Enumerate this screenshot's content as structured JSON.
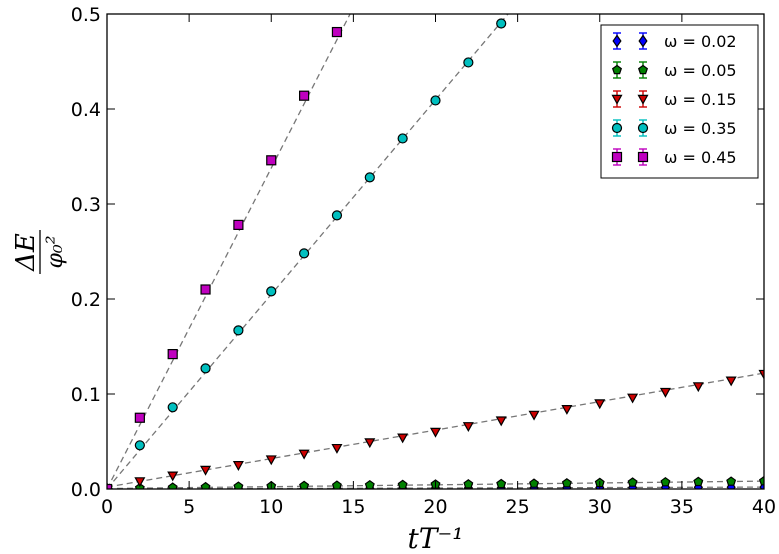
{
  "chart_data": {
    "type": "scatter",
    "xlabel": "tT⁻¹",
    "ylabel_num": "ΔE",
    "ylabel_den": "φ₀²",
    "xlim": [
      0,
      40
    ],
    "ylim": [
      0,
      0.5
    ],
    "xticks": [
      "0",
      "5",
      "10",
      "15",
      "20",
      "25",
      "30",
      "35",
      "40"
    ],
    "yticks": [
      "0.0",
      "0.1",
      "0.2",
      "0.3",
      "0.4",
      "0.5"
    ],
    "grid": false,
    "legend_position": "top-right",
    "series": [
      {
        "name": "ω = 0.02",
        "color": "#0000ff",
        "marker": "diamond",
        "x": [
          0,
          2,
          4,
          6,
          8,
          10,
          12,
          14,
          16,
          18,
          20,
          22,
          24,
          26,
          28,
          30,
          32,
          34,
          36,
          38,
          40
        ],
        "y": [
          0.0,
          0.0001,
          0.0002,
          0.0003,
          0.0004,
          0.0005,
          0.0006,
          0.0007,
          0.0008,
          0.0009,
          0.001,
          0.0011,
          0.0012,
          0.0013,
          0.0014,
          0.0015,
          0.0016,
          0.0017,
          0.0018,
          0.0019,
          0.002
        ],
        "fit": [
          [
            0,
            0.0
          ],
          [
            40,
            0.002
          ]
        ]
      },
      {
        "name": "ω = 0.05",
        "color": "#008000",
        "marker": "pentagon",
        "x": [
          0,
          2,
          4,
          6,
          8,
          10,
          12,
          14,
          16,
          18,
          20,
          22,
          24,
          26,
          28,
          30,
          32,
          34,
          36,
          38,
          40
        ],
        "y": [
          0.0,
          0.001,
          0.0015,
          0.002,
          0.0025,
          0.003,
          0.0033,
          0.0036,
          0.004,
          0.0043,
          0.0047,
          0.005,
          0.0053,
          0.0057,
          0.006,
          0.0064,
          0.0068,
          0.0072,
          0.0075,
          0.0078,
          0.0083
        ],
        "fit": [
          [
            0,
            0.0005
          ],
          [
            40,
            0.0083
          ]
        ]
      },
      {
        "name": "ω = 0.15",
        "color": "#cc0000",
        "marker": "triangle-down",
        "x": [
          0,
          2,
          4,
          6,
          8,
          10,
          12,
          14,
          16,
          18,
          20,
          22,
          24,
          26,
          28,
          30,
          32,
          34,
          36,
          38,
          40
        ],
        "y": [
          0.0,
          0.008,
          0.014,
          0.02,
          0.025,
          0.031,
          0.037,
          0.043,
          0.049,
          0.054,
          0.06,
          0.066,
          0.072,
          0.078,
          0.084,
          0.09,
          0.096,
          0.102,
          0.108,
          0.114,
          0.121
        ],
        "fit": [
          [
            0,
            0.002
          ],
          [
            40,
            0.122
          ]
        ]
      },
      {
        "name": "ω = 0.35",
        "color": "#00bfbf",
        "marker": "circle",
        "x": [
          0,
          2,
          4,
          6,
          8,
          10,
          12,
          14,
          16,
          18,
          20,
          22,
          24
        ],
        "y": [
          0.0,
          0.046,
          0.086,
          0.127,
          0.167,
          0.208,
          0.248,
          0.288,
          0.328,
          0.369,
          0.409,
          0.449,
          0.49
        ],
        "fit": [
          [
            0,
            0.0
          ],
          [
            25,
            0.512
          ]
        ]
      },
      {
        "name": "ω = 0.45",
        "color": "#bf00bf",
        "marker": "square",
        "x": [
          0,
          2,
          4,
          6,
          8,
          10,
          12,
          14
        ],
        "y": [
          0.0,
          0.075,
          0.142,
          0.21,
          0.278,
          0.346,
          0.414,
          0.481
        ],
        "fit": [
          [
            0,
            0.0
          ],
          [
            14.8,
            0.5
          ]
        ]
      }
    ]
  }
}
